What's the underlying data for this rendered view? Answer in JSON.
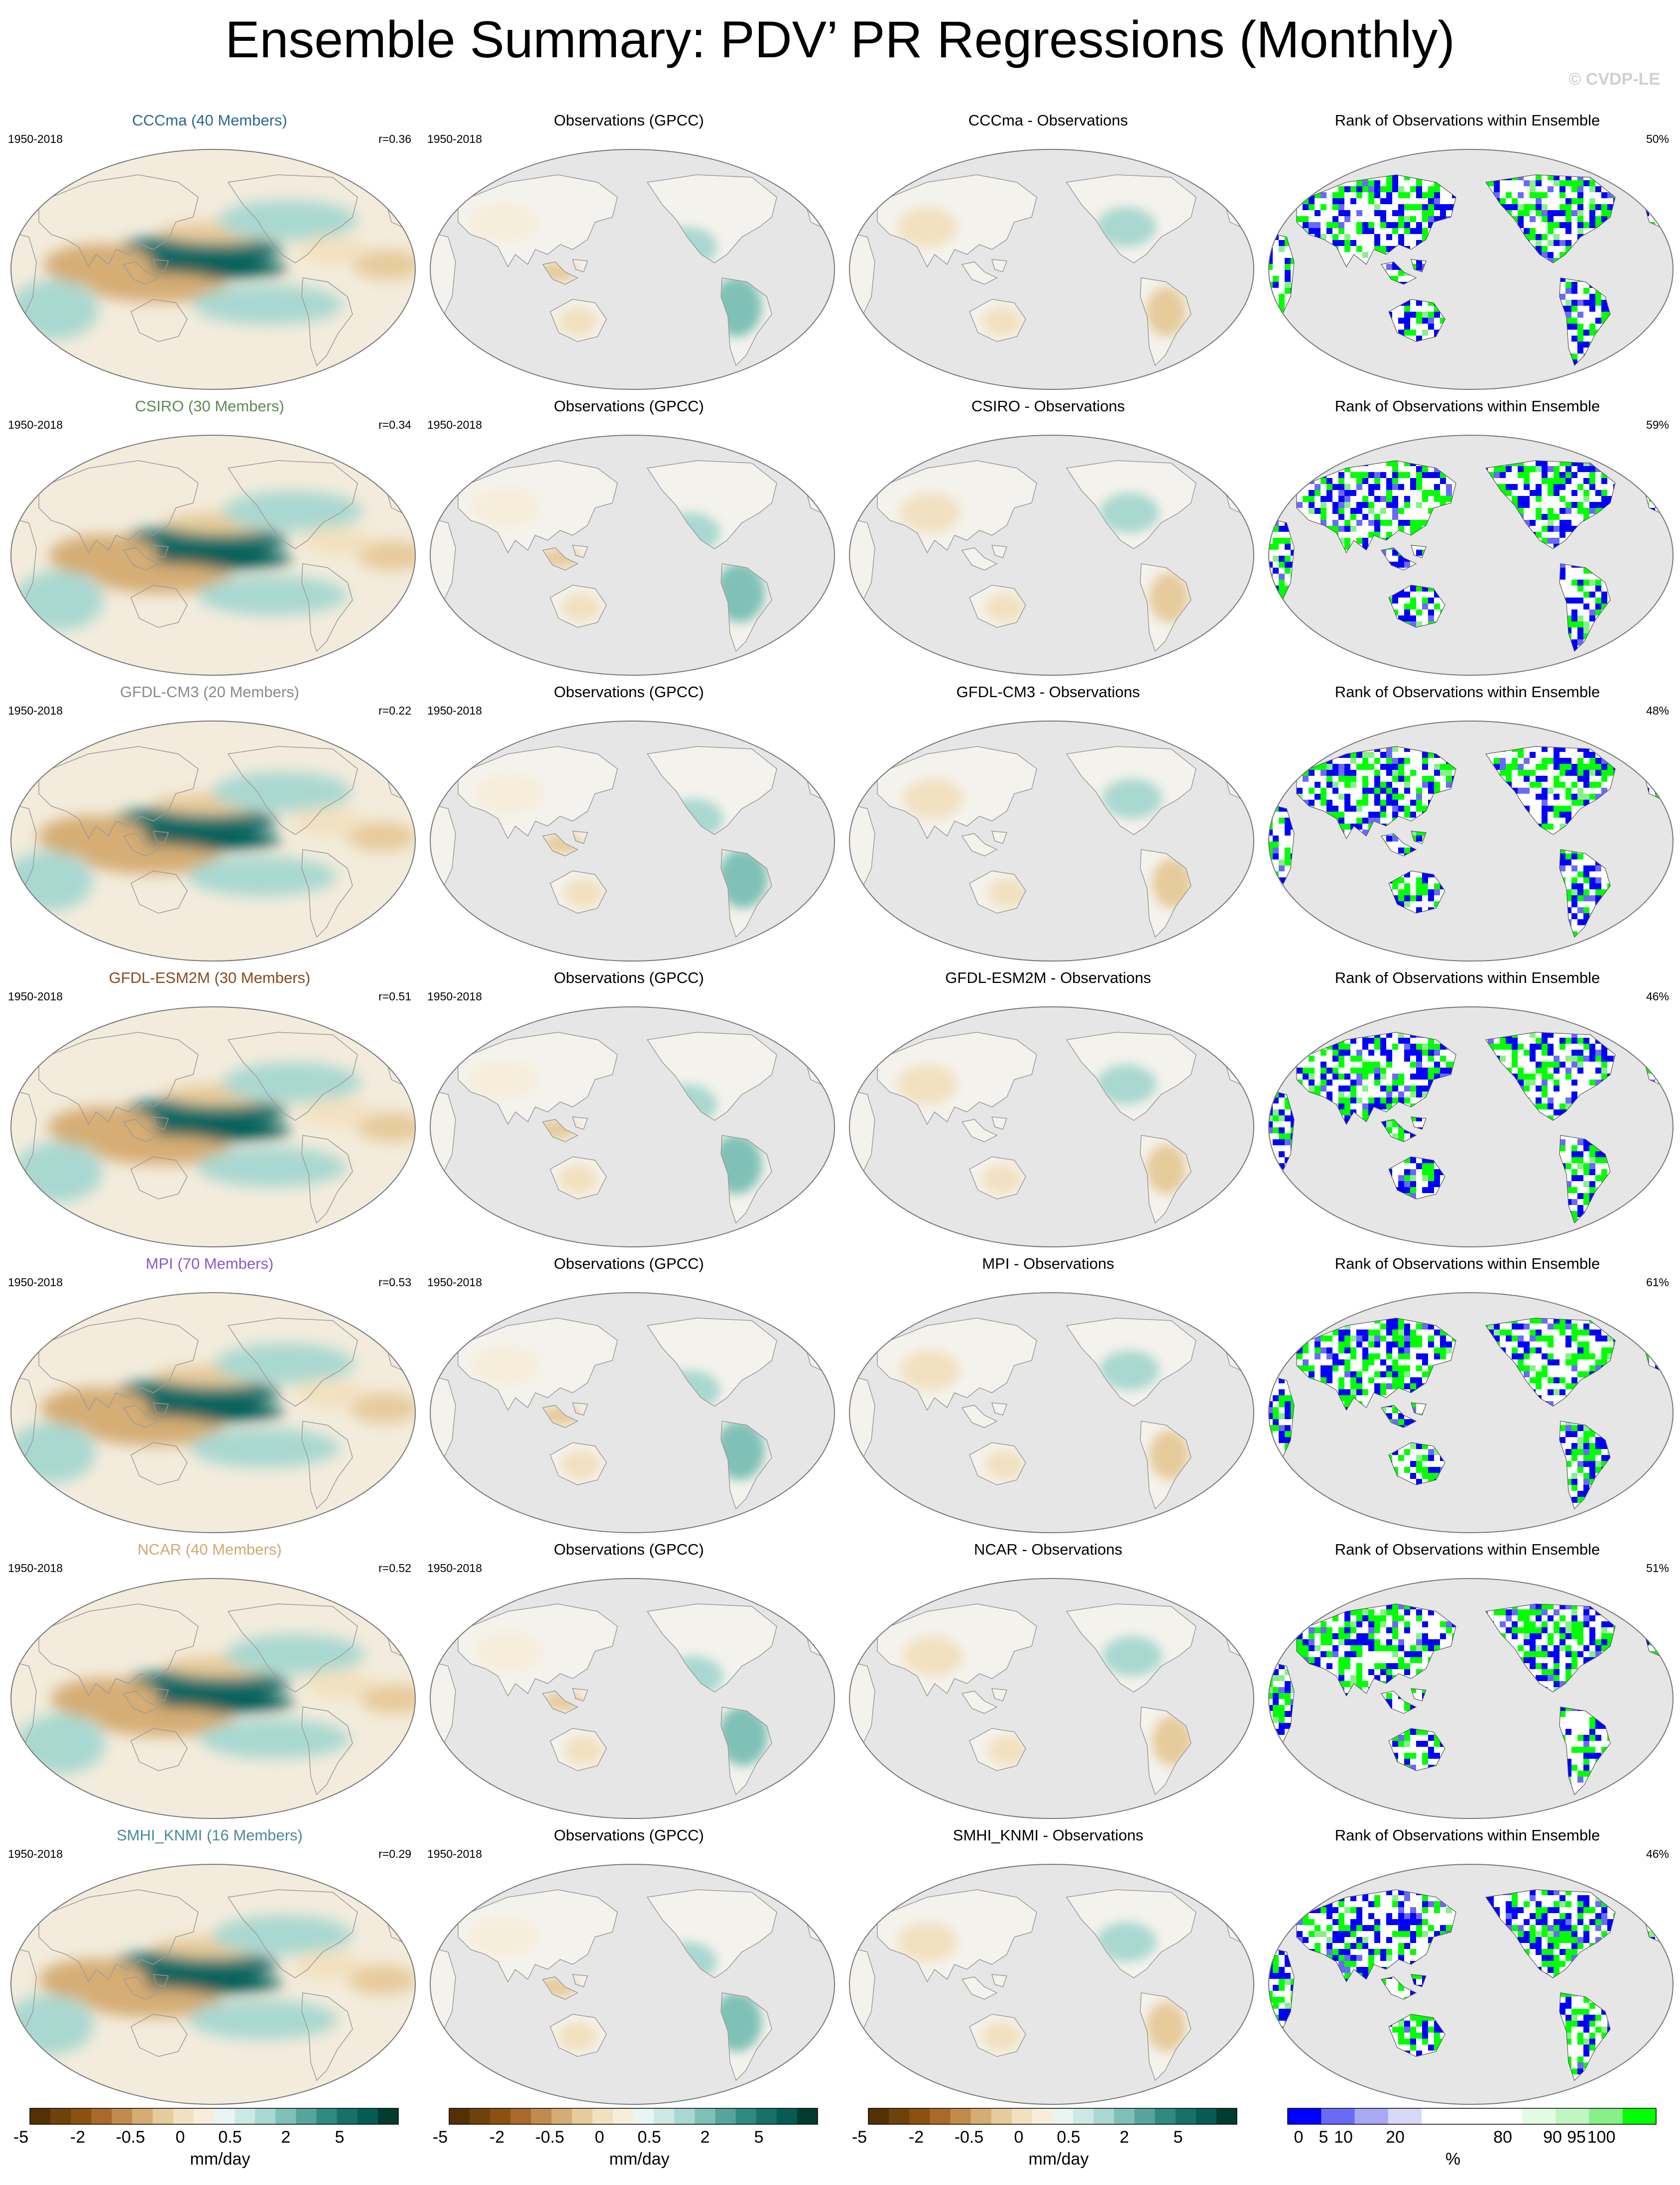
{
  "figure": {
    "title": "Ensemble Summary: PDV’ PR Regressions (Monthly)",
    "copyright": "© CVDP-LE"
  },
  "chart_data": {
    "type": "heatmap",
    "projection": "robinson-like, Pacific-centered",
    "panel_columns": [
      "ensemble-mean",
      "observations",
      "difference",
      "rank"
    ],
    "rows": [
      {
        "model": "CCCma (40 Members)",
        "model_color": "#2a6b8a",
        "period": "1950-2018",
        "r": "r=0.36",
        "obs_title": "Observations (GPCC)",
        "obs_period": "1950-2018",
        "diff_title": "CCCma - Observations",
        "rank_title": "Rank of Observations within Ensemble",
        "rank_pct": "50%"
      },
      {
        "model": "CSIRO (30 Members)",
        "model_color": "#5c8a52",
        "period": "1950-2018",
        "r": "r=0.34",
        "obs_title": "Observations (GPCC)",
        "obs_period": "1950-2018",
        "diff_title": "CSIRO - Observations",
        "rank_title": "Rank of Observations within Ensemble",
        "rank_pct": "59%"
      },
      {
        "model": "GFDL-CM3 (20 Members)",
        "model_color": "#8a8a8a",
        "period": "1950-2018",
        "r": "r=0.22",
        "obs_title": "Observations (GPCC)",
        "obs_period": "1950-2018",
        "diff_title": "GFDL-CM3 - Observations",
        "rank_title": "Rank of Observations within Ensemble",
        "rank_pct": "48%"
      },
      {
        "model": "GFDL-ESM2M (30 Members)",
        "model_color": "#8a4a1a",
        "period": "1950-2018",
        "r": "r=0.51",
        "obs_title": "Observations (GPCC)",
        "obs_period": "1950-2018",
        "diff_title": "GFDL-ESM2M - Observations",
        "rank_title": "Rank of Observations within Ensemble",
        "rank_pct": "46%"
      },
      {
        "model": "MPI (70 Members)",
        "model_color": "#8a5ac8",
        "period": "1950-2018",
        "r": "r=0.53",
        "obs_title": "Observations (GPCC)",
        "obs_period": "1950-2018",
        "diff_title": "MPI - Observations",
        "rank_title": "Rank of Observations within Ensemble",
        "rank_pct": "61%"
      },
      {
        "model": "NCAR (40 Members)",
        "model_color": "#d4a870",
        "period": "1950-2018",
        "r": "r=0.52",
        "obs_title": "Observations (GPCC)",
        "obs_period": "1950-2018",
        "diff_title": "NCAR - Observations",
        "rank_title": "Rank of Observations within Ensemble",
        "rank_pct": "51%"
      },
      {
        "model": "SMHI_KNMI (16 Members)",
        "model_color": "#4a8a9a",
        "period": "1950-2018",
        "r": "r=0.29",
        "obs_title": "Observations (GPCC)",
        "obs_period": "1950-2018",
        "diff_title": "SMHI_KNMI - Observations",
        "rank_title": "Rank of Observations within Ensemble",
        "rank_pct": "46%"
      }
    ],
    "pr_colorbar": {
      "tick_labels": [
        "-5",
        "-2",
        "-0.5",
        "0",
        "0.5",
        "2",
        "5"
      ],
      "unit": "mm/day",
      "colors": [
        "#543005",
        "#6f420b",
        "#8c5111",
        "#a9692b",
        "#c18b4d",
        "#d5ad74",
        "#e6cb9b",
        "#f2e1c0",
        "#f6eedb",
        "#eaf4f2",
        "#cde9e5",
        "#a9d8d0",
        "#7fc1b6",
        "#56a59a",
        "#2f8a80",
        "#17706a",
        "#065c55",
        "#003c30"
      ]
    },
    "rank_colorbar": {
      "tick_labels": [
        "0",
        "5",
        "10",
        "20",
        "80",
        "90",
        "95",
        "100"
      ],
      "unit": "%",
      "colors": [
        "#0000ff",
        "#6a6af8",
        "#a8a8f4",
        "#d8d8f8",
        "#ffffff",
        "#ffffff",
        "#ffffff",
        "#e2fbe2",
        "#c0f6c0",
        "#88f088",
        "#00ff00"
      ]
    }
  }
}
